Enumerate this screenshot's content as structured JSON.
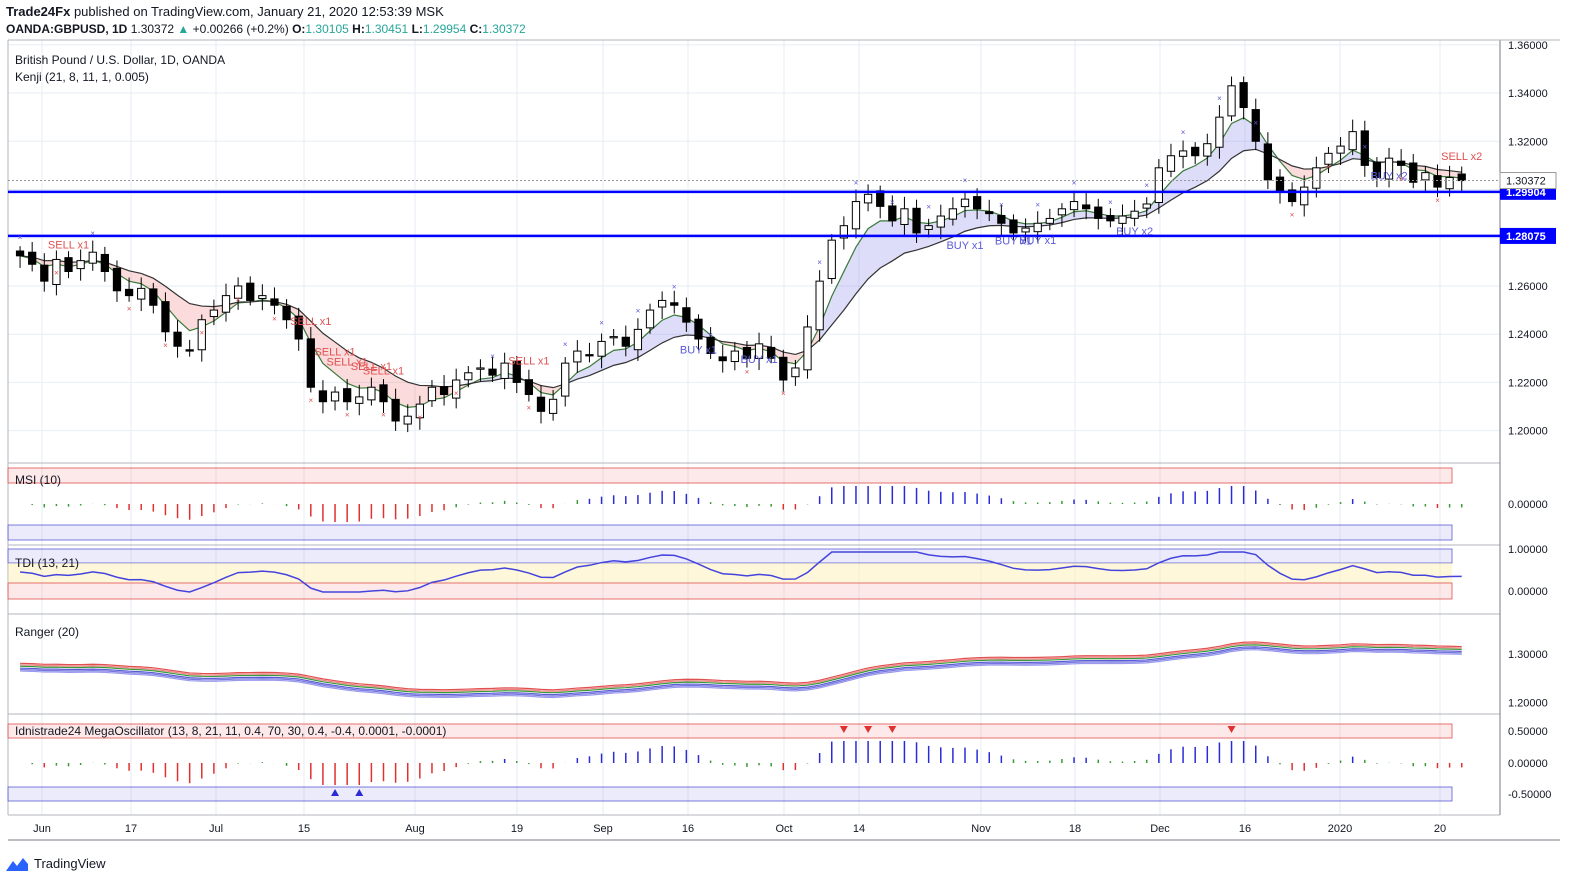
{
  "header": {
    "publisher": "Trade24Fx",
    "published_text": "published on TradingView.com, January 21, 2020 12:53:39 MSK",
    "symbol": "OANDA:GBPUSD, 1D",
    "last": "1.30372",
    "change": "+0.00266 (+0.2%)",
    "o_label": "O:",
    "o": "1.30105",
    "h_label": "H:",
    "h": "1.30451",
    "l_label": "L:",
    "l": "1.29954",
    "c_label": "C:",
    "c": "1.30372"
  },
  "legend": {
    "title": "British Pound / U.S. Dollar, 1D, OANDA",
    "study": "Kenji (21, 8, 11, 1, 0.005)"
  },
  "footer": {
    "brand": "TradingView"
  },
  "colors": {
    "up": "#ffffff",
    "down": "#000000",
    "hline": "#0000ff",
    "buy": "#5b5bd6",
    "sell": "#e05050",
    "grid": "#e6eef5"
  },
  "chart_data": [
    {
      "type": "candlestick",
      "title": "British Pound / U.S. Dollar, 1D, OANDA",
      "x_tick_labels": [
        "Jun",
        "17",
        "Jul",
        "15",
        "Aug",
        "19",
        "Sep",
        "16",
        "Oct",
        "14",
        "Nov",
        "18",
        "Dec",
        "16",
        "2020",
        "20"
      ],
      "y_tick_labels": [
        "1.36000",
        "1.34000",
        "1.32000",
        "1.30372",
        "1.29904",
        "1.28075",
        "1.26000",
        "1.24000",
        "1.22000",
        "1.20000"
      ],
      "ylim": [
        1.187,
        1.362
      ],
      "horizontal_levels": [
        1.29904,
        1.28075
      ],
      "last_price": 1.30372,
      "key_prices": [
        1.2725,
        1.269,
        1.262,
        1.271,
        1.266,
        1.2705,
        1.274,
        1.266,
        1.258,
        1.256,
        1.259,
        1.252,
        1.241,
        1.235,
        1.233,
        1.246,
        1.25,
        1.256,
        1.26,
        1.254,
        1.256,
        1.252,
        1.246,
        1.238,
        1.218,
        1.212,
        1.216,
        1.212,
        1.214,
        1.218,
        1.212,
        1.204,
        1.206,
        1.211,
        1.218,
        1.215,
        1.221,
        1.224,
        1.226,
        1.223,
        1.228,
        1.22,
        1.215,
        1.208,
        1.213,
        1.228,
        1.233,
        1.231,
        1.237,
        1.239,
        1.235,
        1.242,
        1.25,
        1.254,
        1.252,
        1.245,
        1.238,
        1.232,
        1.229,
        1.233,
        1.23,
        1.236,
        1.23,
        1.221,
        1.226,
        1.243,
        1.262,
        1.279,
        1.285,
        1.295,
        1.298,
        1.293,
        1.287,
        1.292,
        1.282,
        1.285,
        1.289,
        1.292,
        1.296,
        1.292,
        1.29,
        1.286,
        1.282,
        1.284,
        1.286,
        1.288,
        1.292,
        1.295,
        1.292,
        1.288,
        1.287,
        1.289,
        1.291,
        1.294,
        1.309,
        1.314,
        1.316,
        1.314,
        1.319,
        1.33,
        1.343,
        1.334,
        1.32,
        1.304,
        1.299,
        1.295,
        1.301,
        1.309,
        1.315,
        1.318,
        1.324,
        1.31,
        1.305,
        1.313,
        1.31,
        1.303,
        1.307,
        1.301,
        1.305,
        1.3037
      ]
    },
    {
      "type": "bar",
      "title": "MSI (10)",
      "y_tick_labels": [
        "0.00000"
      ]
    },
    {
      "type": "line",
      "title": "TDI (13, 21)",
      "y_tick_labels": [
        "1.00000",
        "0.00000"
      ]
    },
    {
      "type": "line",
      "title": "Ranger (20)",
      "y_tick_labels": [
        "1.30000",
        "1.20000"
      ]
    },
    {
      "type": "bar",
      "title": "Idnistrade24 MegaOscillator (13, 8, 21, 11, 0.4, 70, 30, 0.4, -0.4, 0.0001, -0.0001)",
      "y_tick_labels": [
        "0.50000",
        "0.00000",
        "-0.50000"
      ]
    }
  ],
  "signals": [
    {
      "text": "SELL x1",
      "kind": "sell",
      "idx": 6
    },
    {
      "text": "SELL x1",
      "kind": "sell",
      "idx": 36
    },
    {
      "text": "SELL x1",
      "kind": "sell",
      "idx": 39
    },
    {
      "text": "SELL x1",
      "kind": "sell",
      "idx": 41
    },
    {
      "text": "SELL x1",
      "kind": "sell",
      "idx": 44
    },
    {
      "text": "SELL x1",
      "kind": "sell",
      "idx": 46
    },
    {
      "text": "SELL x1",
      "kind": "sell",
      "idx": 63
    },
    {
      "text": "BUY x1",
      "kind": "buy",
      "idx": 85
    },
    {
      "text": "BUY x1",
      "kind": "buy",
      "idx": 92
    },
    {
      "text": "BUY x1",
      "kind": "buy",
      "idx": 117
    },
    {
      "text": "BUY x1",
      "kind": "buy",
      "idx": 124
    },
    {
      "text": "BUY x1",
      "kind": "buy",
      "idx": 126
    },
    {
      "text": "BUY x2",
      "kind": "buy",
      "idx": 139
    },
    {
      "text": "BUY x2",
      "kind": "buy",
      "idx": 170
    },
    {
      "text": "SELL x2",
      "kind": "sell",
      "idx": 179
    }
  ]
}
